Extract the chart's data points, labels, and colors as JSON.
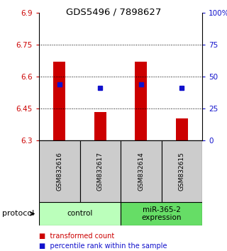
{
  "title": "GDS5496 / 7898627",
  "samples": [
    "GSM832616",
    "GSM832617",
    "GSM832614",
    "GSM832615"
  ],
  "bar_values": [
    6.67,
    6.435,
    6.67,
    6.405
  ],
  "bar_base": 6.3,
  "percentile_values": [
    6.563,
    6.547,
    6.563,
    6.547
  ],
  "ylim": [
    6.3,
    6.9
  ],
  "yticks_left": [
    6.3,
    6.45,
    6.6,
    6.75,
    6.9
  ],
  "yticks_right": [
    0,
    25,
    50,
    75,
    100
  ],
  "grid_lines": [
    6.45,
    6.6,
    6.75
  ],
  "bar_color": "#cc0000",
  "percentile_color": "#1111cc",
  "group1_label": "control",
  "group1_color": "#bbffbb",
  "group2_label": "miR-365-2\nexpression",
  "group2_color": "#66dd66",
  "protocol_label": "protocol",
  "legend_red": "transformed count",
  "legend_blue": "percentile rank within the sample",
  "background_color": "#ffffff",
  "plot_bg": "#ffffff",
  "label_color_left": "#cc0000",
  "label_color_right": "#1111cc",
  "sample_box_color": "#cccccc",
  "bar_width": 0.3
}
